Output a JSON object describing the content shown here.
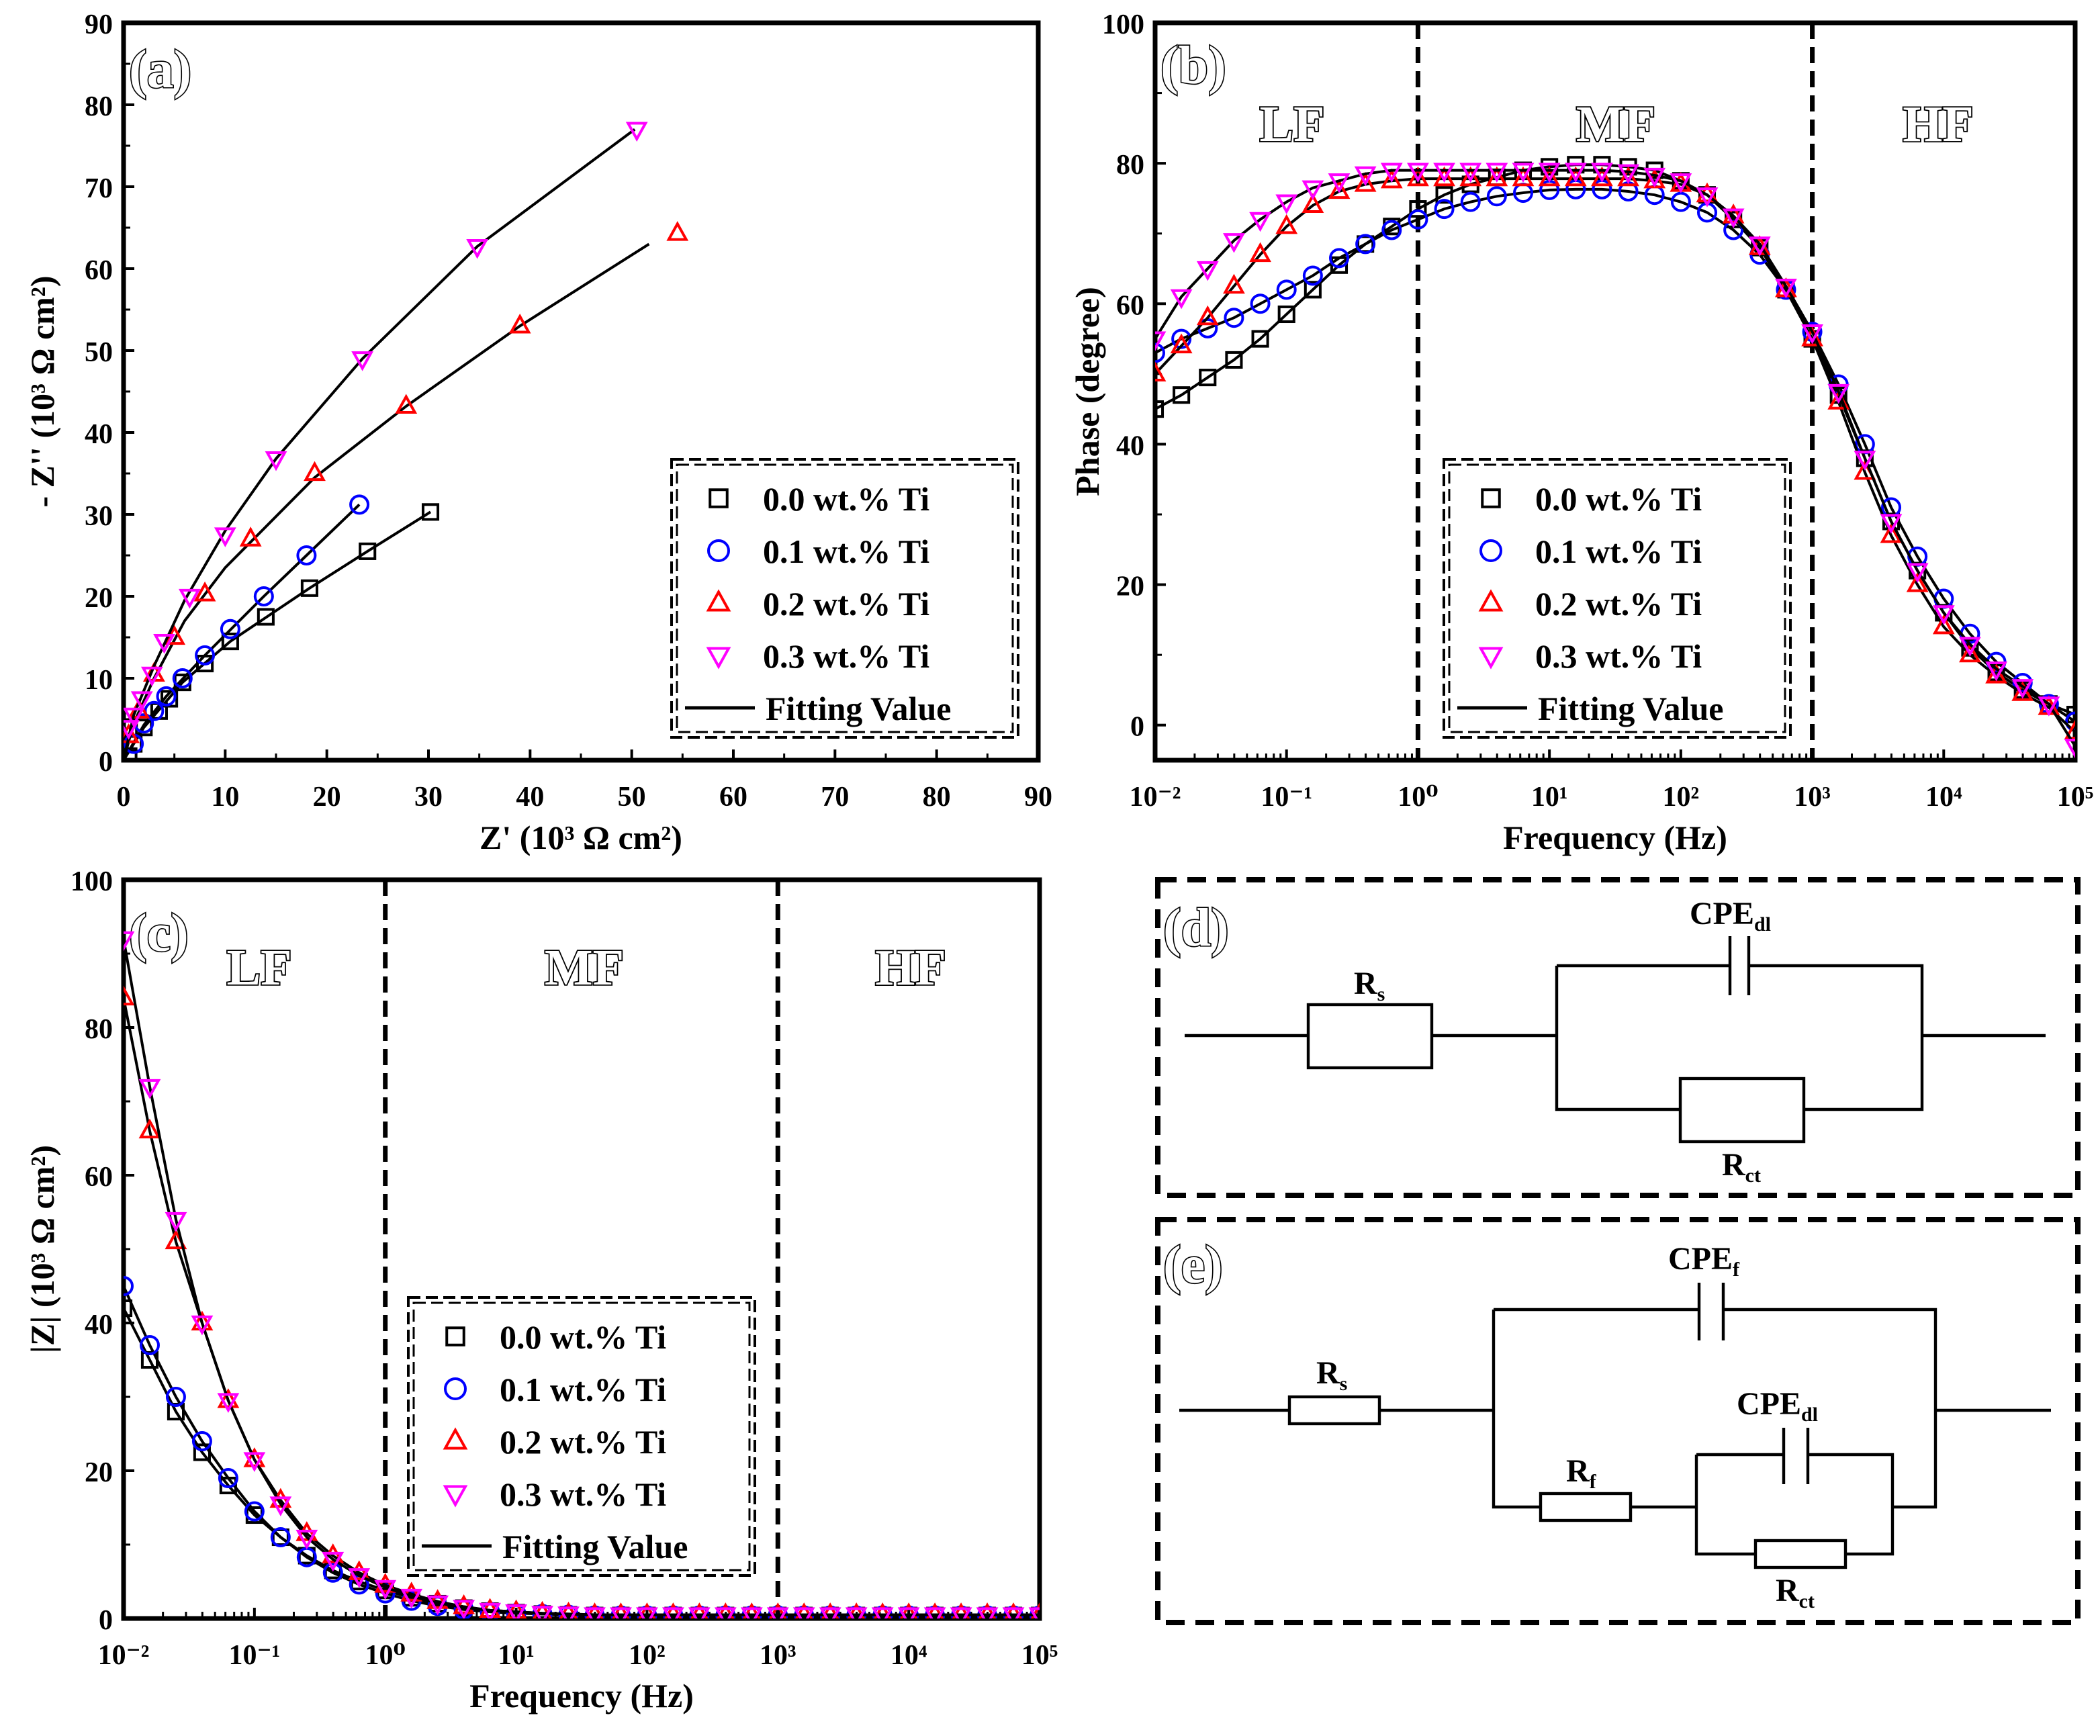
{
  "colors": {
    "s0": "#000000",
    "s1": "#0000ff",
    "s2": "#ff0000",
    "s3": "#ff00ff",
    "fit": "#000000"
  },
  "legend": [
    "0.0 wt.% Ti",
    "0.1 wt.% Ti",
    "0.2 wt.% Ti",
    "0.3 wt.% Ti",
    "Fitting Value"
  ],
  "regions": [
    "LF",
    "MF",
    "HF"
  ],
  "chart_data": [
    {
      "panel": "(a)",
      "type": "scatter",
      "xlabel": "Z' (10³ Ω cm²)",
      "ylabel": "- Z'' (10³ Ω cm²)",
      "xlim": [
        0,
        90
      ],
      "ylim": [
        0,
        90
      ],
      "xticks": [
        "0",
        "10",
        "20",
        "30",
        "40",
        "50",
        "60",
        "70",
        "80",
        "90"
      ],
      "yticks": [
        "0",
        "10",
        "20",
        "30",
        "40",
        "50",
        "60",
        "70",
        "80",
        "90"
      ],
      "legend_position": "bottom-right",
      "series": [
        {
          "name": "0.0 wt.% Ti",
          "marker": "square",
          "points": [
            [
              0.5,
              0.5
            ],
            [
              1,
              2
            ],
            [
              2,
              4
            ],
            [
              3.5,
              6
            ],
            [
              4.5,
              7.5
            ],
            [
              5.8,
              9.5
            ],
            [
              8,
              11.8
            ],
            [
              10.5,
              14.5
            ],
            [
              14,
              17.5
            ],
            [
              18.3,
              21
            ],
            [
              24,
              25.5
            ],
            [
              30.2,
              30.3
            ]
          ],
          "fit": [
            [
              0,
              0
            ],
            [
              2,
              4
            ],
            [
              5.8,
              9.5
            ],
            [
              10.5,
              14.5
            ],
            [
              18.3,
              21
            ],
            [
              24,
              25.5
            ],
            [
              30.2,
              30.3
            ]
          ]
        },
        {
          "name": "0.1 wt.% Ti",
          "marker": "circle",
          "points": [
            [
              1,
              2
            ],
            [
              2,
              4.5
            ],
            [
              3,
              6
            ],
            [
              4.2,
              7.8
            ],
            [
              5.8,
              10
            ],
            [
              8,
              12.8
            ],
            [
              10.5,
              16
            ],
            [
              13.8,
              20
            ],
            [
              18,
              25
            ],
            [
              23.2,
              31.2
            ]
          ],
          "fit": [
            [
              0,
              0
            ],
            [
              2,
              4.3
            ],
            [
              4.2,
              7.8
            ],
            [
              8,
              12.8
            ],
            [
              13.8,
              20
            ],
            [
              18,
              25
            ],
            [
              23.2,
              31.2
            ]
          ]
        },
        {
          "name": "0.2 wt.% Ti",
          "marker": "triangle-up",
          "points": [
            [
              0.5,
              3
            ],
            [
              1.5,
              6
            ],
            [
              3,
              10.5
            ],
            [
              5,
              15
            ],
            [
              8,
              20.3
            ],
            [
              12.5,
              27
            ],
            [
              18.8,
              35
            ],
            [
              27.8,
              43.2
            ],
            [
              39,
              53
            ],
            [
              54.5,
              64.3
            ]
          ],
          "fit": [
            [
              0,
              0
            ],
            [
              1,
              4.5
            ],
            [
              3,
              10
            ],
            [
              6,
              17
            ],
            [
              10,
              23.5
            ],
            [
              18.8,
              34.5
            ],
            [
              27.8,
              43.2
            ],
            [
              39,
              53
            ],
            [
              51.7,
              63
            ]
          ]
        },
        {
          "name": "0.3 wt.% Ti",
          "marker": "triangle-down",
          "points": [
            [
              0.5,
              4
            ],
            [
              1,
              5.5
            ],
            [
              1.8,
              7.5
            ],
            [
              2.8,
              10.5
            ],
            [
              4,
              14.5
            ],
            [
              6.5,
              20
            ],
            [
              10,
              27.5
            ],
            [
              15,
              36.8
            ],
            [
              23.5,
              49
            ],
            [
              34.8,
              62.7
            ],
            [
              50.5,
              77
            ]
          ],
          "fit": [
            [
              0,
              0
            ],
            [
              1,
              5.5
            ],
            [
              3,
              11.5
            ],
            [
              6,
              19.5
            ],
            [
              10,
              28
            ],
            [
              15,
              36.8
            ],
            [
              23.5,
              49
            ],
            [
              34.8,
              62.7
            ],
            [
              50.3,
              77
            ]
          ]
        }
      ]
    },
    {
      "panel": "(b)",
      "type": "scatter",
      "xlabel": "Frequency (Hz)",
      "ylabel": "Phase (degree)",
      "xscale": "log",
      "xlim": [
        0.01,
        100000
      ],
      "ylim": [
        -5,
        100
      ],
      "xticks": [
        "10⁻²",
        "10⁻¹",
        "10⁰",
        "10¹",
        "10²",
        "10³",
        "10⁴",
        "10⁵"
      ],
      "yticks": [
        "0",
        "20",
        "40",
        "60",
        "80",
        "100"
      ],
      "region_bounds_hz": [
        1,
        1000
      ],
      "legend_position": "center-bottom",
      "log10_freq": [
        -2,
        -1.8,
        -1.6,
        -1.4,
        -1.2,
        -1,
        -0.8,
        -0.6,
        -0.4,
        -0.2,
        0,
        0.2,
        0.4,
        0.6,
        0.8,
        1,
        1.2,
        1.4,
        1.6,
        1.8,
        2,
        2.2,
        2.4,
        2.6,
        2.8,
        3,
        3.2,
        3.4,
        3.6,
        3.8,
        4,
        4.2,
        4.4,
        4.6,
        4.8,
        5
      ],
      "series": [
        {
          "name": "0.0 wt.% Ti",
          "marker": "square",
          "values": [
            45,
            47,
            49.5,
            52,
            55,
            58.5,
            62,
            65.5,
            68.5,
            71,
            73.5,
            75.5,
            77,
            78,
            79,
            79.5,
            79.8,
            79.8,
            79.5,
            79,
            77.5,
            75.5,
            72,
            68,
            62,
            55,
            47,
            38,
            29,
            22,
            16,
            11,
            7.5,
            5,
            3,
            1.5
          ]
        },
        {
          "name": "0.1 wt.% Ti",
          "marker": "circle",
          "values": [
            53,
            55,
            56.5,
            58,
            60,
            62,
            64,
            66.5,
            68.5,
            70.5,
            72,
            73.5,
            74.5,
            75.3,
            75.8,
            76.2,
            76.3,
            76.3,
            76,
            75.5,
            74.5,
            73,
            70.5,
            67,
            62,
            56,
            48.5,
            40,
            31,
            24,
            18,
            13,
            9,
            6,
            3,
            0.5
          ]
        },
        {
          "name": "0.2 wt.% Ti",
          "marker": "triangle-up",
          "values": [
            50,
            54,
            58,
            62.5,
            67,
            71,
            74,
            76,
            77,
            77.5,
            77.8,
            77.8,
            77.8,
            77.8,
            77.8,
            77.8,
            77.8,
            77.8,
            77.8,
            77.5,
            77,
            75.5,
            72.5,
            68,
            62,
            55,
            46,
            36,
            27,
            20,
            14,
            10,
            7,
            4.5,
            2.5,
            -1
          ]
        },
        {
          "name": "0.3 wt.% Ti",
          "marker": "triangle-down",
          "values": [
            55,
            61,
            65,
            69,
            72,
            74.5,
            76.5,
            77.5,
            78.5,
            79,
            79,
            79,
            79,
            79,
            79,
            79,
            79,
            79,
            78.8,
            78.3,
            77.5,
            75.5,
            72.5,
            68.5,
            62.5,
            56,
            47.5,
            38,
            29,
            22,
            16,
            11.5,
            8,
            5.5,
            3,
            -3
          ]
        }
      ]
    },
    {
      "panel": "(c)",
      "type": "scatter",
      "xlabel": "Frequency (Hz)",
      "ylabel": "|Z| (10³ Ω cm²)",
      "xscale": "log",
      "xlim": [
        0.01,
        100000
      ],
      "ylim": [
        0,
        100
      ],
      "xticks": [
        "10⁻²",
        "10⁻¹",
        "10⁰",
        "10¹",
        "10²",
        "10³",
        "10⁴",
        "10⁵"
      ],
      "yticks": [
        "0",
        "20",
        "40",
        "60",
        "80",
        "100"
      ],
      "region_bounds_hz": [
        1,
        1000
      ],
      "legend_position": "center-bottom",
      "log10_freq": [
        -2,
        -1.8,
        -1.6,
        -1.4,
        -1.2,
        -1,
        -0.8,
        -0.6,
        -0.4,
        -0.2,
        0,
        0.2,
        0.4,
        0.6,
        0.8,
        1,
        1.2,
        1.4,
        1.6,
        1.8,
        2,
        2.2,
        2.4,
        2.6,
        2.8,
        3,
        3.2,
        3.4,
        3.6,
        3.8,
        4,
        4.2,
        4.4,
        4.6,
        4.8,
        5
      ],
      "series": [
        {
          "name": "0.0 wt.% Ti",
          "marker": "square",
          "values": [
            42,
            35,
            28,
            22.5,
            18,
            14,
            11,
            8.5,
            6.5,
            5,
            3.8,
            2.8,
            2,
            1.4,
            1,
            0.8,
            0.6,
            0.5,
            0.4,
            0.4,
            0.4,
            0.4,
            0.4,
            0.4,
            0.4,
            0.4,
            0.4,
            0.4,
            0.4,
            0.4,
            0.4,
            0.4,
            0.4,
            0.4,
            0.4,
            0.4
          ]
        },
        {
          "name": "0.1 wt.% Ti",
          "marker": "circle",
          "values": [
            45,
            37,
            30,
            24,
            19,
            14.5,
            11,
            8.3,
            6.2,
            4.6,
            3.4,
            2.4,
            1.7,
            1.2,
            0.9,
            0.7,
            0.6,
            0.5,
            0.4,
            0.4,
            0.4,
            0.4,
            0.4,
            0.4,
            0.4,
            0.4,
            0.4,
            0.4,
            0.4,
            0.4,
            0.4,
            0.4,
            0.4,
            0.4,
            0.4,
            0.4
          ]
        },
        {
          "name": "0.2 wt.% Ti",
          "marker": "triangle-up",
          "values": [
            84,
            66,
            51,
            40,
            29.5,
            21.5,
            16,
            11.5,
            8.5,
            6.2,
            4.5,
            3.3,
            2.3,
            1.6,
            1.1,
            0.9,
            0.7,
            0.6,
            0.5,
            0.5,
            0.5,
            0.5,
            0.5,
            0.5,
            0.5,
            0.5,
            0.5,
            0.5,
            0.5,
            0.5,
            0.5,
            0.5,
            0.5,
            0.5,
            0.5,
            0.5
          ]
        },
        {
          "name": "0.3 wt.% Ti",
          "marker": "triangle-down",
          "values": [
            92,
            72,
            54,
            40,
            29.5,
            21.5,
            15.5,
            11,
            8,
            5.8,
            4.2,
            3,
            2.1,
            1.5,
            1.1,
            0.9,
            0.7,
            0.6,
            0.5,
            0.5,
            0.5,
            0.5,
            0.5,
            0.5,
            0.5,
            0.5,
            0.5,
            0.5,
            0.5,
            0.5,
            0.5,
            0.5,
            0.5,
            0.5,
            0.5,
            0.5
          ]
        }
      ]
    }
  ],
  "circuits": {
    "d": {
      "panel": "(d)",
      "Rs": {
        "main": "R",
        "sub": "s"
      },
      "CPEdl": {
        "main": "CPE",
        "sub": "dl"
      },
      "Rct": {
        "main": "R",
        "sub": "ct"
      }
    },
    "e": {
      "panel": "(e)",
      "Rs": {
        "main": "R",
        "sub": "s"
      },
      "CPEf": {
        "main": "CPE",
        "sub": "f"
      },
      "CPEdl": {
        "main": "CPE",
        "sub": "dl"
      },
      "Rf": {
        "main": "R",
        "sub": "f"
      },
      "Rct": {
        "main": "R",
        "sub": "ct"
      }
    }
  }
}
